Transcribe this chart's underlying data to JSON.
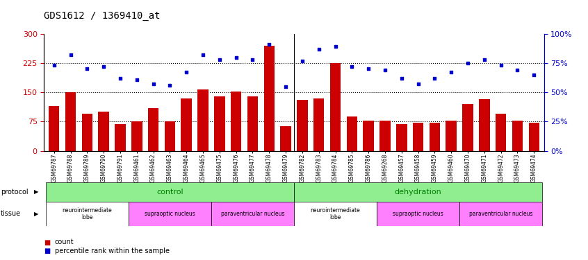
{
  "title": "GDS1612 / 1369410_at",
  "samples": [
    "GSM69787",
    "GSM69788",
    "GSM69789",
    "GSM69790",
    "GSM69791",
    "GSM69461",
    "GSM69462",
    "GSM69463",
    "GSM69464",
    "GSM69465",
    "GSM69475",
    "GSM69476",
    "GSM69477",
    "GSM69478",
    "GSM69479",
    "GSM69782",
    "GSM69783",
    "GSM69784",
    "GSM69785",
    "GSM69786",
    "GSM69268",
    "GSM69457",
    "GSM69458",
    "GSM69459",
    "GSM69460",
    "GSM69470",
    "GSM69471",
    "GSM69472",
    "GSM69473",
    "GSM69474"
  ],
  "counts": [
    115,
    150,
    95,
    100,
    68,
    75,
    110,
    75,
    135,
    158,
    140,
    152,
    140,
    270,
    63,
    130,
    135,
    225,
    88,
    78,
    77,
    68,
    72,
    72,
    78,
    120,
    132,
    95,
    78,
    72
  ],
  "percentiles": [
    73,
    82,
    70,
    72,
    62,
    61,
    57,
    56,
    67,
    82,
    78,
    80,
    78,
    91,
    55,
    77,
    87,
    89,
    72,
    70,
    69,
    62,
    57,
    62,
    67,
    75,
    78,
    73,
    69,
    65
  ],
  "bar_color": "#cc0000",
  "dot_color": "#0000cc",
  "left_ylim": [
    0,
    300
  ],
  "right_ylim": [
    0,
    100
  ],
  "left_yticks": [
    0,
    75,
    150,
    225,
    300
  ],
  "right_yticks": [
    0,
    25,
    50,
    75,
    100
  ],
  "hlines": [
    75,
    150,
    225
  ],
  "title_fontsize": 10,
  "axis_color_left": "#cc0000",
  "axis_color_right": "#0000cc",
  "protocol_groups": [
    {
      "label": "control",
      "start": 0,
      "end": 14
    },
    {
      "label": "dehydration",
      "start": 15,
      "end": 29
    }
  ],
  "tissue_groups": [
    {
      "label": "neurointermediate\nlobe",
      "start": 0,
      "end": 4,
      "color": "#ffffff"
    },
    {
      "label": "supraoptic nucleus",
      "start": 5,
      "end": 9,
      "color": "#FF80FF"
    },
    {
      "label": "paraventricular nucleus",
      "start": 10,
      "end": 14,
      "color": "#FF80FF"
    },
    {
      "label": "neurointermediate\nlobe",
      "start": 15,
      "end": 19,
      "color": "#ffffff"
    },
    {
      "label": "supraoptic nucleus",
      "start": 20,
      "end": 24,
      "color": "#FF80FF"
    },
    {
      "label": "paraventricular nucleus",
      "start": 25,
      "end": 29,
      "color": "#FF80FF"
    }
  ],
  "protocol_color": "#90EE90",
  "protocol_text_color": "green"
}
